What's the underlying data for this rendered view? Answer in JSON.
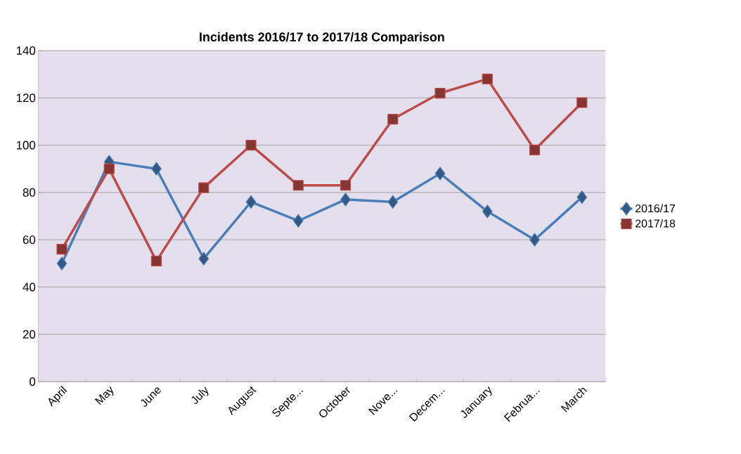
{
  "chart_data": {
    "type": "line",
    "title": "Incidents 2016/17 to 2017/18 Comparison",
    "categories": [
      "April",
      "May",
      "June",
      "July",
      "August",
      "Septe...",
      "October",
      "Nove...",
      "Decem...",
      "January",
      "Februa...",
      "March"
    ],
    "series": [
      {
        "name": "2016/17",
        "color": "#4a7ebb",
        "marker": "diamond",
        "values": [
          50,
          93,
          90,
          52,
          76,
          68,
          77,
          76,
          88,
          72,
          60,
          78
        ]
      },
      {
        "name": "2017/18",
        "color": "#be4b48",
        "marker": "square",
        "values": [
          56,
          90,
          51,
          82,
          100,
          83,
          83,
          111,
          122,
          128,
          98,
          118
        ]
      }
    ],
    "ylim": [
      0,
      140
    ],
    "yticks": [
      0,
      20,
      40,
      60,
      80,
      100,
      120,
      140
    ],
    "grid": "y",
    "legend": "right",
    "line_style": "solid"
  }
}
